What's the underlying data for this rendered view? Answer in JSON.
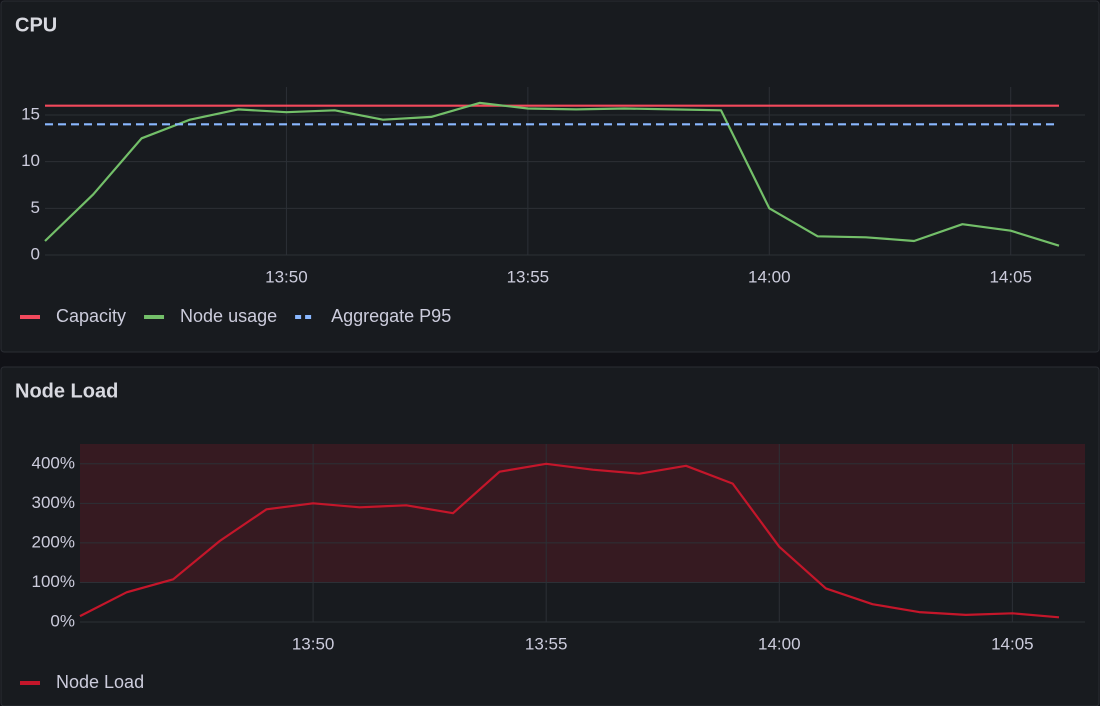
{
  "chart_data": [
    {
      "type": "line",
      "title": "CPU",
      "x": [
        "13:45",
        "13:46",
        "13:47",
        "13:48",
        "13:49",
        "13:50",
        "13:51",
        "13:52",
        "13:53",
        "13:54",
        "13:55",
        "13:56",
        "13:57",
        "13:58",
        "13:59",
        "14:00",
        "14:01",
        "14:02",
        "14:03",
        "14:04",
        "14:05",
        "14:06"
      ],
      "series": [
        {
          "name": "Capacity",
          "color": "#f2495c",
          "style": "solid",
          "values": [
            16,
            16,
            16,
            16,
            16,
            16,
            16,
            16,
            16,
            16,
            16,
            16,
            16,
            16,
            16,
            16,
            16,
            16,
            16,
            16,
            16,
            16
          ]
        },
        {
          "name": "Node usage",
          "color": "#73bf69",
          "style": "solid",
          "values": [
            1.5,
            6.5,
            12.5,
            14.5,
            15.6,
            15.3,
            15.5,
            14.5,
            14.8,
            16.3,
            15.7,
            15.6,
            15.7,
            15.6,
            15.5,
            5,
            2,
            1.9,
            1.5,
            3.3,
            2.6,
            1
          ]
        },
        {
          "name": "Aggregate P95",
          "color": "#8ab8ff",
          "style": "dashed",
          "values": [
            14,
            14,
            14,
            14,
            14,
            14,
            14,
            14,
            14,
            14,
            14,
            14,
            14,
            14,
            14,
            14,
            14,
            14,
            14,
            14,
            14,
            14
          ]
        }
      ],
      "xlim": [
        "13:45",
        "14:06"
      ],
      "xticks": [
        "13:50",
        "13:55",
        "14:00",
        "14:05"
      ],
      "ylim": [
        0,
        18
      ],
      "yticks": [
        0,
        5,
        10,
        15
      ],
      "grid": true,
      "legend": "bottom"
    },
    {
      "type": "line",
      "title": "Node Load",
      "x": [
        "13:45",
        "13:46",
        "13:47",
        "13:48",
        "13:49",
        "13:50",
        "13:51",
        "13:52",
        "13:53",
        "13:54",
        "13:55",
        "13:56",
        "13:57",
        "13:58",
        "13:59",
        "14:00",
        "14:01",
        "14:02",
        "14:03",
        "14:04",
        "14:05",
        "14:06"
      ],
      "series": [
        {
          "name": "Node Load",
          "color": "#c4162a",
          "style": "solid",
          "values": [
            15,
            75,
            108,
            205,
            285,
            300,
            290,
            295,
            275,
            380,
            400,
            385,
            375,
            395,
            350,
            190,
            85,
            45,
            25,
            18,
            22,
            12
          ]
        }
      ],
      "xlim": [
        "13:45",
        "14:06"
      ],
      "xticks": [
        "13:50",
        "13:55",
        "14:00",
        "14:05"
      ],
      "ylim": [
        0,
        450
      ],
      "yticks": [
        {
          "value": 0,
          "label": "0%"
        },
        {
          "value": 100,
          "label": "100%"
        },
        {
          "value": 200,
          "label": "200%"
        },
        {
          "value": 300,
          "label": "300%"
        },
        {
          "value": 400,
          "label": "400%"
        }
      ],
      "threshold": 100,
      "threshold_color": "#c4162a",
      "grid": true,
      "legend": "bottom"
    }
  ]
}
